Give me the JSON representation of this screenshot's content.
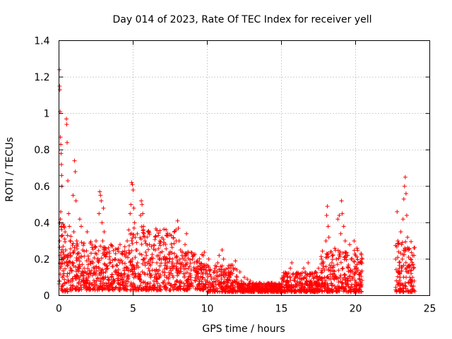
{
  "chart_data": {
    "type": "scatter",
    "title": "Day 014 of 2023, Rate Of TEC Index for receiver yell",
    "xlabel": "GPS time / hours",
    "ylabel": "ROTI / TECUs",
    "xlim": [
      0,
      25
    ],
    "ylim": [
      0,
      1.4
    ],
    "xticks": [
      0,
      5,
      10,
      15,
      20,
      25
    ],
    "xtick_labels": [
      "0",
      "5",
      "10",
      "15",
      "20",
      "25"
    ],
    "yticks": [
      0,
      0.2,
      0.4,
      0.6,
      0.8,
      1,
      1.2,
      1.4
    ],
    "ytick_labels": [
      "0",
      "0.2",
      "0.4",
      "0.6",
      "0.8",
      "1",
      "1.2",
      "1.4"
    ],
    "grid": true,
    "marker": "+",
    "color": "#ff0000",
    "series": [
      {
        "name": "ROTI",
        "points": [
          [
            0.02,
            1.24
          ],
          [
            0.04,
            1.15
          ],
          [
            0.06,
            1.13
          ],
          [
            0.08,
            1.01
          ],
          [
            0.1,
            0.87
          ],
          [
            0.12,
            0.83
          ],
          [
            0.14,
            0.78
          ],
          [
            0.16,
            0.72
          ],
          [
            0.18,
            0.66
          ],
          [
            0.2,
            0.6
          ],
          [
            0.12,
            0.46
          ],
          [
            0.1,
            0.42
          ],
          [
            0.16,
            0.38
          ],
          [
            0.05,
            0.3
          ],
          [
            0.08,
            0.22
          ],
          [
            0.1,
            0.15
          ],
          [
            0.03,
            0.08
          ],
          [
            0.2,
            0.05
          ],
          [
            0.25,
            0.33
          ],
          [
            0.28,
            0.27
          ],
          [
            0.3,
            0.2
          ],
          [
            0.35,
            0.12
          ],
          [
            0.4,
            0.07
          ],
          [
            0.45,
            0.25
          ],
          [
            0.5,
            0.97
          ],
          [
            0.52,
            0.94
          ],
          [
            0.55,
            0.84
          ],
          [
            0.6,
            0.63
          ],
          [
            0.65,
            0.45
          ],
          [
            0.7,
            0.38
          ],
          [
            0.75,
            0.3
          ],
          [
            0.8,
            0.22
          ],
          [
            0.85,
            0.14
          ],
          [
            0.9,
            0.08
          ],
          [
            0.95,
            0.55
          ],
          [
            1.0,
            0.35
          ],
          [
            1.05,
            0.74
          ],
          [
            1.1,
            0.68
          ],
          [
            1.15,
            0.52
          ],
          [
            1.2,
            0.3
          ],
          [
            1.25,
            0.2
          ],
          [
            1.3,
            0.1
          ],
          [
            1.4,
            0.42
          ],
          [
            1.5,
            0.38
          ],
          [
            1.6,
            0.25
          ],
          [
            1.7,
            0.15
          ],
          [
            1.8,
            0.08
          ],
          [
            1.9,
            0.35
          ],
          [
            2.0,
            0.2
          ],
          [
            2.1,
            0.12
          ],
          [
            2.2,
            0.06
          ],
          [
            2.3,
            0.18
          ],
          [
            2.5,
            0.3
          ],
          [
            2.6,
            0.2
          ],
          [
            2.7,
            0.45
          ],
          [
            2.75,
            0.57
          ],
          [
            2.8,
            0.55
          ],
          [
            2.85,
            0.52
          ],
          [
            2.9,
            0.4
          ],
          [
            2.95,
            0.3
          ],
          [
            3.0,
            0.48
          ],
          [
            3.05,
            0.35
          ],
          [
            3.1,
            0.25
          ],
          [
            3.2,
            0.15
          ],
          [
            3.3,
            0.1
          ],
          [
            3.4,
            0.2
          ],
          [
            3.5,
            0.28
          ],
          [
            3.6,
            0.16
          ],
          [
            3.7,
            0.08
          ],
          [
            3.8,
            0.2
          ],
          [
            3.9,
            0.13
          ],
          [
            4.0,
            0.07
          ],
          [
            4.1,
            0.18
          ],
          [
            4.2,
            0.12
          ],
          [
            4.3,
            0.06
          ],
          [
            4.4,
            0.15
          ],
          [
            4.5,
            0.22
          ],
          [
            4.6,
            0.3
          ],
          [
            4.7,
            0.36
          ],
          [
            4.8,
            0.45
          ],
          [
            4.85,
            0.5
          ],
          [
            4.9,
            0.62
          ],
          [
            4.95,
            0.61
          ],
          [
            5.0,
            0.58
          ],
          [
            5.05,
            0.48
          ],
          [
            5.1,
            0.4
          ],
          [
            5.15,
            0.32
          ],
          [
            5.2,
            0.25
          ],
          [
            5.3,
            0.18
          ],
          [
            5.4,
            0.1
          ],
          [
            5.5,
            0.44
          ],
          [
            5.55,
            0.52
          ],
          [
            5.6,
            0.5
          ],
          [
            5.65,
            0.45
          ],
          [
            5.7,
            0.38
          ],
          [
            5.8,
            0.3
          ],
          [
            5.9,
            0.22
          ],
          [
            6.0,
            0.35
          ],
          [
            6.1,
            0.28
          ],
          [
            6.2,
            0.2
          ],
          [
            6.3,
            0.14
          ],
          [
            6.4,
            0.08
          ],
          [
            6.5,
            0.25
          ],
          [
            6.6,
            0.18
          ],
          [
            6.7,
            0.12
          ],
          [
            6.8,
            0.3
          ],
          [
            6.9,
            0.2
          ],
          [
            7.0,
            0.13
          ],
          [
            7.1,
            0.08
          ],
          [
            7.2,
            0.2
          ],
          [
            7.3,
            0.15
          ],
          [
            7.4,
            0.1
          ],
          [
            7.5,
            0.24
          ],
          [
            7.6,
            0.16
          ],
          [
            7.7,
            0.1
          ],
          [
            7.8,
            0.06
          ],
          [
            7.9,
            0.3
          ],
          [
            8.0,
            0.41
          ],
          [
            8.05,
            0.37
          ],
          [
            8.1,
            0.3
          ],
          [
            8.2,
            0.25
          ],
          [
            8.3,
            0.18
          ],
          [
            8.4,
            0.12
          ],
          [
            8.5,
            0.28
          ],
          [
            8.6,
            0.34
          ],
          [
            8.7,
            0.24
          ],
          [
            8.8,
            0.16
          ],
          [
            8.9,
            0.1
          ],
          [
            9.0,
            0.2
          ],
          [
            9.1,
            0.14
          ],
          [
            9.2,
            0.08
          ],
          [
            9.3,
            0.18
          ],
          [
            9.4,
            0.12
          ],
          [
            9.5,
            0.06
          ],
          [
            9.6,
            0.15
          ],
          [
            9.7,
            0.1
          ],
          [
            9.8,
            0.05
          ],
          [
            9.9,
            0.12
          ],
          [
            10.0,
            0.08
          ],
          [
            10.1,
            0.2
          ],
          [
            10.2,
            0.14
          ],
          [
            10.3,
            0.09
          ],
          [
            10.4,
            0.05
          ],
          [
            10.5,
            0.13
          ],
          [
            10.6,
            0.09
          ],
          [
            10.7,
            0.18
          ],
          [
            10.8,
            0.22
          ],
          [
            10.9,
            0.16
          ],
          [
            11.0,
            0.25
          ],
          [
            11.1,
            0.2
          ],
          [
            11.2,
            0.13
          ],
          [
            11.3,
            0.08
          ],
          [
            11.4,
            0.15
          ],
          [
            11.5,
            0.1
          ],
          [
            11.6,
            0.05
          ],
          [
            11.7,
            0.12
          ],
          [
            11.8,
            0.08
          ],
          [
            11.9,
            0.19
          ],
          [
            12.0,
            0.1
          ],
          [
            12.1,
            0.06
          ],
          [
            12.2,
            0.13
          ],
          [
            12.3,
            0.08
          ],
          [
            12.4,
            0.05
          ],
          [
            12.5,
            0.1
          ],
          [
            12.6,
            0.06
          ],
          [
            12.7,
            0.09
          ],
          [
            12.8,
            0.05
          ],
          [
            12.9,
            0.08
          ],
          [
            13.0,
            0.05
          ],
          [
            13.1,
            0.07
          ],
          [
            13.2,
            0.04
          ],
          [
            13.3,
            0.06
          ],
          [
            13.4,
            0.03
          ],
          [
            13.5,
            0.05
          ],
          [
            13.6,
            0.04
          ],
          [
            13.7,
            0.06
          ],
          [
            13.8,
            0.03
          ],
          [
            13.9,
            0.05
          ],
          [
            14.0,
            0.04
          ],
          [
            14.1,
            0.06
          ],
          [
            14.2,
            0.03
          ],
          [
            14.3,
            0.05
          ],
          [
            14.4,
            0.04
          ],
          [
            14.5,
            0.05
          ],
          [
            14.6,
            0.03
          ],
          [
            14.7,
            0.05
          ],
          [
            14.8,
            0.04
          ],
          [
            14.9,
            0.06
          ],
          [
            15.0,
            0.05
          ],
          [
            15.1,
            0.08
          ],
          [
            15.2,
            0.1
          ],
          [
            15.3,
            0.12
          ],
          [
            15.4,
            0.08
          ],
          [
            15.5,
            0.06
          ],
          [
            15.6,
            0.15
          ],
          [
            15.7,
            0.18
          ],
          [
            15.8,
            0.12
          ],
          [
            15.9,
            0.08
          ],
          [
            16.0,
            0.06
          ],
          [
            16.1,
            0.1
          ],
          [
            16.2,
            0.07
          ],
          [
            16.3,
            0.12
          ],
          [
            16.4,
            0.09
          ],
          [
            16.5,
            0.15
          ],
          [
            16.6,
            0.13
          ],
          [
            16.7,
            0.08
          ],
          [
            16.8,
            0.18
          ],
          [
            16.9,
            0.12
          ],
          [
            17.0,
            0.08
          ],
          [
            17.1,
            0.06
          ],
          [
            17.2,
            0.1
          ],
          [
            17.3,
            0.13
          ],
          [
            17.4,
            0.08
          ],
          [
            17.5,
            0.15
          ],
          [
            17.6,
            0.1
          ],
          [
            17.7,
            0.2
          ],
          [
            17.8,
            0.15
          ],
          [
            17.9,
            0.1
          ],
          [
            18.0,
            0.3
          ],
          [
            18.05,
            0.44
          ],
          [
            18.1,
            0.49
          ],
          [
            18.15,
            0.38
          ],
          [
            18.2,
            0.32
          ],
          [
            18.3,
            0.24
          ],
          [
            18.4,
            0.18
          ],
          [
            18.5,
            0.12
          ],
          [
            18.6,
            0.26
          ],
          [
            18.7,
            0.2
          ],
          [
            18.8,
            0.42
          ],
          [
            18.9,
            0.44
          ],
          [
            19.0,
            0.34
          ],
          [
            19.05,
            0.52
          ],
          [
            19.1,
            0.45
          ],
          [
            19.2,
            0.38
          ],
          [
            19.3,
            0.3
          ],
          [
            19.4,
            0.22
          ],
          [
            19.5,
            0.15
          ],
          [
            19.6,
            0.28
          ],
          [
            19.7,
            0.2
          ],
          [
            19.8,
            0.13
          ],
          [
            19.9,
            0.3
          ],
          [
            20.0,
            0.22
          ],
          [
            20.1,
            0.26
          ],
          [
            20.2,
            0.18
          ],
          [
            20.3,
            0.12
          ],
          [
            20.4,
            0.06
          ],
          [
            22.7,
            0.2
          ],
          [
            22.8,
            0.46
          ],
          [
            22.85,
            0.3
          ],
          [
            22.9,
            0.24
          ],
          [
            22.95,
            0.15
          ],
          [
            23.0,
            0.1
          ],
          [
            23.05,
            0.35
          ],
          [
            23.1,
            0.28
          ],
          [
            23.15,
            0.2
          ],
          [
            23.2,
            0.42
          ],
          [
            23.25,
            0.53
          ],
          [
            23.3,
            0.6
          ],
          [
            23.35,
            0.65
          ],
          [
            23.4,
            0.56
          ],
          [
            23.45,
            0.44
          ],
          [
            23.5,
            0.32
          ],
          [
            23.55,
            0.25
          ],
          [
            23.6,
            0.16
          ],
          [
            23.65,
            0.1
          ],
          [
            23.7,
            0.2
          ],
          [
            23.75,
            0.14
          ],
          [
            23.8,
            0.08
          ],
          [
            23.85,
            0.22
          ],
          [
            23.9,
            0.15
          ],
          [
            23.95,
            0.08
          ]
        ],
        "bands": [
          [
            0.0,
            0.9,
            0.02,
            0.4
          ],
          [
            0.9,
            2.4,
            0.03,
            0.3
          ],
          [
            2.4,
            4.8,
            0.03,
            0.28
          ],
          [
            4.8,
            7.9,
            0.03,
            0.38
          ],
          [
            7.9,
            10.0,
            0.03,
            0.24
          ],
          [
            10.0,
            12.0,
            0.02,
            0.17
          ],
          [
            12.0,
            15.0,
            0.02,
            0.07
          ],
          [
            15.0,
            17.6,
            0.02,
            0.13
          ],
          [
            17.6,
            20.45,
            0.02,
            0.25
          ],
          [
            22.7,
            24.0,
            0.02,
            0.3
          ]
        ]
      }
    ]
  }
}
